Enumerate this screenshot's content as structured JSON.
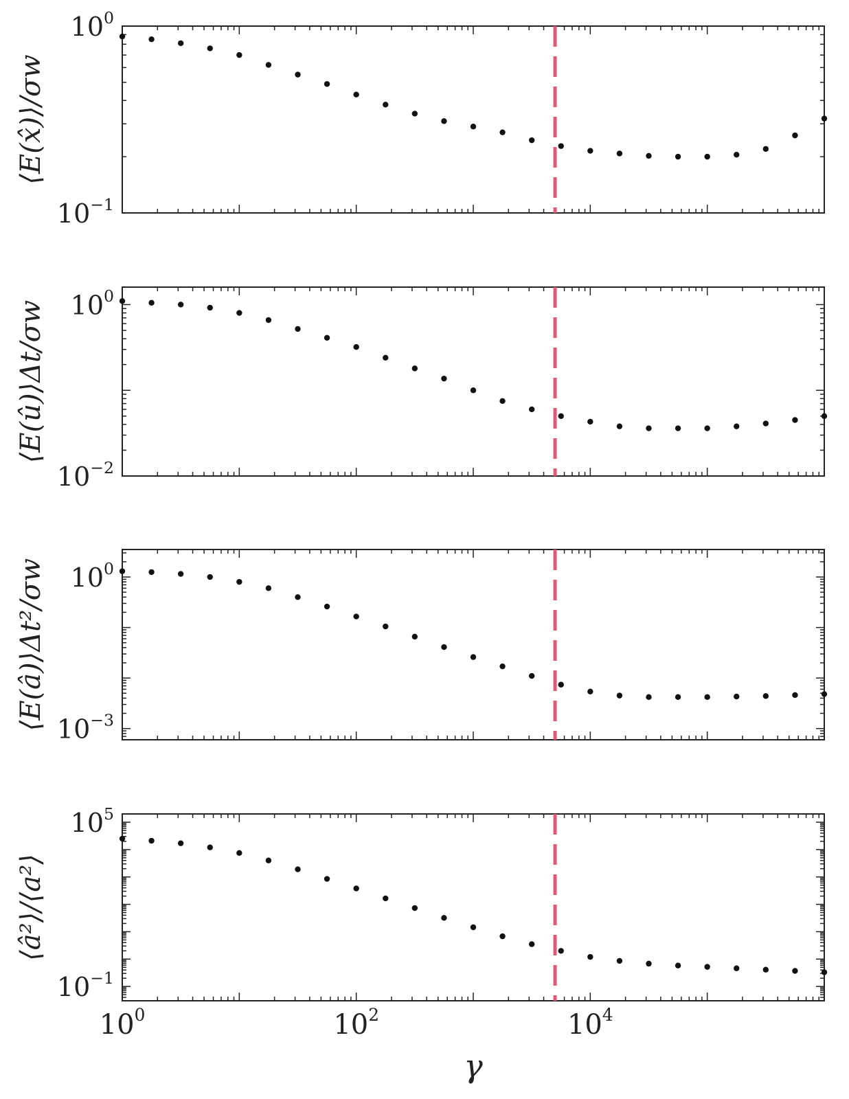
{
  "chart_data": [
    {
      "type": "scatter",
      "ylabel": "⟨E(x̂)⟩/σw",
      "yscale": "log",
      "ylim": [
        0.1,
        1
      ],
      "yticks": [
        {
          "value": 1,
          "base": "10",
          "exp": "0"
        },
        {
          "value": 0.1,
          "base": "10",
          "exp": "−1"
        }
      ],
      "vline": 5000,
      "x": [
        1,
        1.778,
        3.162,
        5.623,
        10,
        17.78,
        31.62,
        56.23,
        100,
        177.8,
        316.2,
        562.3,
        1000,
        1778,
        3162,
        5623,
        10000,
        17783,
        31623,
        56234,
        100000,
        177828,
        316228,
        562341,
        1000000
      ],
      "y": [
        0.88,
        0.85,
        0.81,
        0.76,
        0.7,
        0.62,
        0.55,
        0.49,
        0.43,
        0.38,
        0.34,
        0.31,
        0.29,
        0.27,
        0.245,
        0.228,
        0.215,
        0.208,
        0.202,
        0.2,
        0.2,
        0.205,
        0.22,
        0.26,
        0.32
      ]
    },
    {
      "type": "scatter",
      "ylabel": "⟨E(û)⟩Δt/σw",
      "yscale": "log",
      "ylim": [
        0.01,
        1.6
      ],
      "yticks": [
        {
          "value": 1,
          "base": "10",
          "exp": "0"
        },
        {
          "value": 0.01,
          "base": "10",
          "exp": "−2"
        }
      ],
      "vline": 5000,
      "x": [
        1,
        1.778,
        3.162,
        5.623,
        10,
        17.78,
        31.62,
        56.23,
        100,
        177.8,
        316.2,
        562.3,
        1000,
        1778,
        3162,
        5623,
        10000,
        17783,
        31623,
        56234,
        100000,
        177828,
        316228,
        562341,
        1000000
      ],
      "y": [
        1.1,
        1.05,
        1.0,
        0.92,
        0.8,
        0.66,
        0.52,
        0.41,
        0.32,
        0.24,
        0.18,
        0.137,
        0.1,
        0.075,
        0.06,
        0.05,
        0.043,
        0.038,
        0.036,
        0.036,
        0.036,
        0.038,
        0.041,
        0.045,
        0.05
      ]
    },
    {
      "type": "scatter",
      "ylabel": "⟨E(â)⟩Δt²/σw",
      "yscale": "log",
      "ylim": [
        0.0006,
        3.5
      ],
      "yticks": [
        {
          "value": 1,
          "base": "10",
          "exp": "0"
        },
        {
          "value": 0.001,
          "base": "10",
          "exp": "−3"
        }
      ],
      "vline": 5000,
      "x": [
        1,
        1.778,
        3.162,
        5.623,
        10,
        17.78,
        31.62,
        56.23,
        100,
        177.8,
        316.2,
        562.3,
        1000,
        1778,
        3162,
        5623,
        10000,
        17783,
        31623,
        56234,
        100000,
        177828,
        316228,
        562341,
        1000000
      ],
      "y": [
        1.3,
        1.25,
        1.15,
        1.0,
        0.8,
        0.6,
        0.4,
        0.26,
        0.165,
        0.105,
        0.066,
        0.041,
        0.026,
        0.017,
        0.011,
        0.0074,
        0.0054,
        0.0045,
        0.0042,
        0.0042,
        0.0042,
        0.0043,
        0.0044,
        0.0046,
        0.0048
      ]
    },
    {
      "type": "scatter",
      "ylabel": "⟨â²⟩/⟨a²⟩",
      "yscale": "log",
      "ylim": [
        0.03,
        200000
      ],
      "yticks": [
        {
          "value": 100000,
          "base": "10",
          "exp": "5"
        },
        {
          "value": 0.1,
          "base": "10",
          "exp": "−1"
        }
      ],
      "vline": 5000,
      "x": [
        1,
        1.778,
        3.162,
        5.623,
        10,
        17.78,
        31.62,
        56.23,
        100,
        177.8,
        316.2,
        562.3,
        1000,
        1778,
        3162,
        5623,
        10000,
        17783,
        31623,
        56234,
        100000,
        177828,
        316228,
        562341,
        1000000
      ],
      "y": [
        25000,
        21000,
        17000,
        12000,
        7500,
        4000,
        1900,
        850,
        380,
        165,
        73,
        32,
        14.5,
        6.8,
        3.5,
        2.0,
        1.2,
        0.86,
        0.68,
        0.58,
        0.52,
        0.46,
        0.41,
        0.37,
        0.33
      ]
    }
  ],
  "x_axis": {
    "label": "γ",
    "scale": "log",
    "xlim": [
      1,
      1000000
    ],
    "ticks": [
      {
        "value": 1,
        "base": "10",
        "exp": "0"
      },
      {
        "value": 100,
        "base": "10",
        "exp": "2"
      },
      {
        "value": 10000,
        "base": "10",
        "exp": "4"
      }
    ]
  },
  "colors": {
    "marker": "#111111",
    "threshold_line": "#e05a74",
    "axes": "#222222"
  }
}
